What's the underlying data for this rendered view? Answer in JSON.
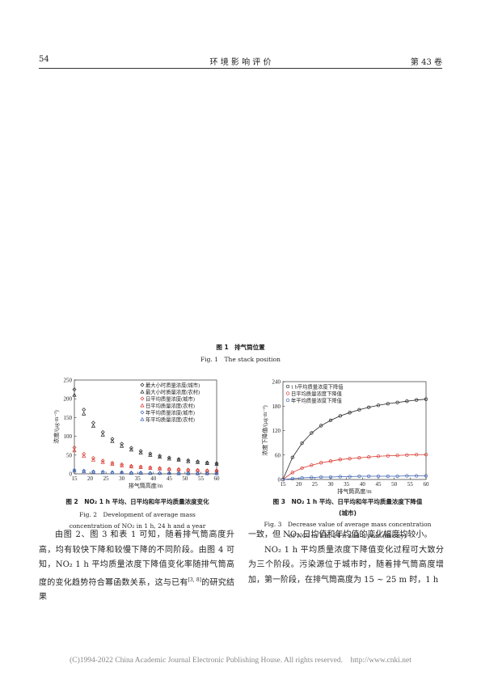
{
  "header": {
    "page": "54",
    "journal": "环 境 影 响 评 价",
    "volume": "第 43 卷"
  },
  "figure1": {
    "caption_cn": "图 1　排气筒位置",
    "caption_en": "Fig. 1　The stack position"
  },
  "chart2": {
    "type": "scatter",
    "xlabel": "排气筒高度/m",
    "ylabel": "浓度/(μg·m⁻³)",
    "x": [
      15,
      18,
      21,
      24,
      27,
      30,
      33,
      36,
      39,
      42,
      45,
      48,
      51,
      54,
      57,
      60
    ],
    "xlim": [
      15,
      60
    ],
    "xticks": [
      15,
      20,
      25,
      30,
      35,
      40,
      45,
      50,
      55,
      60
    ],
    "ylim": [
      0,
      250
    ],
    "yticks": [
      0,
      50,
      100,
      150,
      200,
      250
    ],
    "legend": "upper right",
    "series": [
      {
        "name": "最大小时质量浓度(城市)",
        "color": "#222222",
        "marker": "diamond",
        "values": [
          225,
          171,
          136,
          111,
          93,
          80,
          69,
          61,
          54,
          48,
          43,
          39,
          36,
          33,
          30,
          28
        ]
      },
      {
        "name": "最大小时质量浓度(农村)",
        "color": "#222222",
        "marker": "triangle",
        "values": [
          210,
          160,
          127,
          104,
          87,
          74,
          64,
          56,
          50,
          45,
          40,
          37,
          33,
          31,
          28,
          26
        ]
      },
      {
        "name": "日平均质量浓度(城市)",
        "color": "#d9342b",
        "marker": "diamond",
        "values": [
          70,
          53,
          42,
          35,
          29,
          25,
          21,
          19,
          17,
          15,
          13,
          12,
          11,
          10,
          9,
          9
        ]
      },
      {
        "name": "日平均质量浓度(农村)",
        "color": "#d9342b",
        "marker": "triangle",
        "values": [
          62,
          47,
          37,
          31,
          26,
          22,
          19,
          17,
          15,
          13,
          12,
          11,
          10,
          9,
          8,
          8
        ]
      },
      {
        "name": "年平均质量浓度(城市)",
        "color": "#3a5fb0",
        "marker": "diamond",
        "values": [
          10,
          8,
          6,
          5,
          4,
          4,
          3,
          3,
          2,
          2,
          2,
          2,
          2,
          1,
          1,
          1
        ]
      },
      {
        "name": "年平均质量浓度(农村)",
        "color": "#3a5fb0",
        "marker": "triangle",
        "values": [
          8,
          6,
          5,
          4,
          3,
          3,
          2,
          2,
          2,
          2,
          2,
          1,
          1,
          1,
          1,
          1
        ]
      }
    ],
    "caption_cn": "图 2　NO₂ 1 h 平均、日平均和年平均质量浓度变化",
    "caption_en": "Fig. 2　Development of average mass concentration of NO₂ in 1 h, 24 h and a year"
  },
  "chart3": {
    "type": "line",
    "xlabel": "排气筒高度/m",
    "ylabel": "浓度下降值/(μg·m⁻³)",
    "x": [
      15,
      18,
      21,
      24,
      27,
      30,
      33,
      36,
      39,
      42,
      45,
      48,
      51,
      54,
      57,
      60
    ],
    "xlim": [
      15,
      60
    ],
    "xticks": [
      15,
      20,
      25,
      30,
      35,
      40,
      45,
      50,
      55,
      60
    ],
    "ylim": [
      0,
      240
    ],
    "yticks": [
      0,
      60,
      120,
      180,
      240
    ],
    "legend": "upper left",
    "series": [
      {
        "name": "1 h平均质量浓度下降值",
        "color": "#222222",
        "marker": "circle",
        "values": [
          0,
          54,
          89,
          114,
          132,
          145,
          156,
          164,
          171,
          177,
          182,
          186,
          189,
          192,
          195,
          197
        ]
      },
      {
        "name": "日平均质量浓度下降值",
        "color": "#d9342b",
        "marker": "circle",
        "values": [
          0,
          17,
          28,
          35,
          41,
          45,
          49,
          51,
          53,
          55,
          57,
          58,
          59,
          60,
          61,
          61
        ]
      },
      {
        "name": "年平均质量浓度下降值",
        "color": "#3a5fb0",
        "marker": "circle",
        "values": [
          0,
          2,
          4,
          5,
          6,
          6,
          7,
          7,
          8,
          8,
          8,
          8,
          8,
          9,
          9,
          9
        ]
      }
    ],
    "caption_cn": "图 3　NO₂ 1 h 平均、日平均和年平均质量浓度下降值(城市)",
    "caption_en": "Fig. 3　Decrease value of average mass concentration of NO₂ in 1 h, 24 h and a year (in city)"
  },
  "body": {
    "left_a": "由图 2、图 3 和表 1 可知，随着排气筒高度升高，均有较快下降和较慢下降的不同阶段。由图 4 可知，NO₂ 1 h 平均质量浓度下降值变化率随排气筒高度的变化趋势符合幂函数关系，这与已有",
    "left_cite": "[3, 8]",
    "left_b": "的研究结果",
    "right_1": "一致，但 NO₂ 日均值和年均值的变化幅度均较小。",
    "right_2": "NO₂ 1 h 平均质量浓度下降值变化过程可大致分为三个阶段。污染源位于城市时，随着排气筒高度增加，第一阶段，在排气筒高度为 15 ~ 25 m 时，1 h"
  },
  "footer": "(C)1994-2022 China Academic Journal Electronic Publishing House. All rights reserved.    http://www.cnki.net"
}
